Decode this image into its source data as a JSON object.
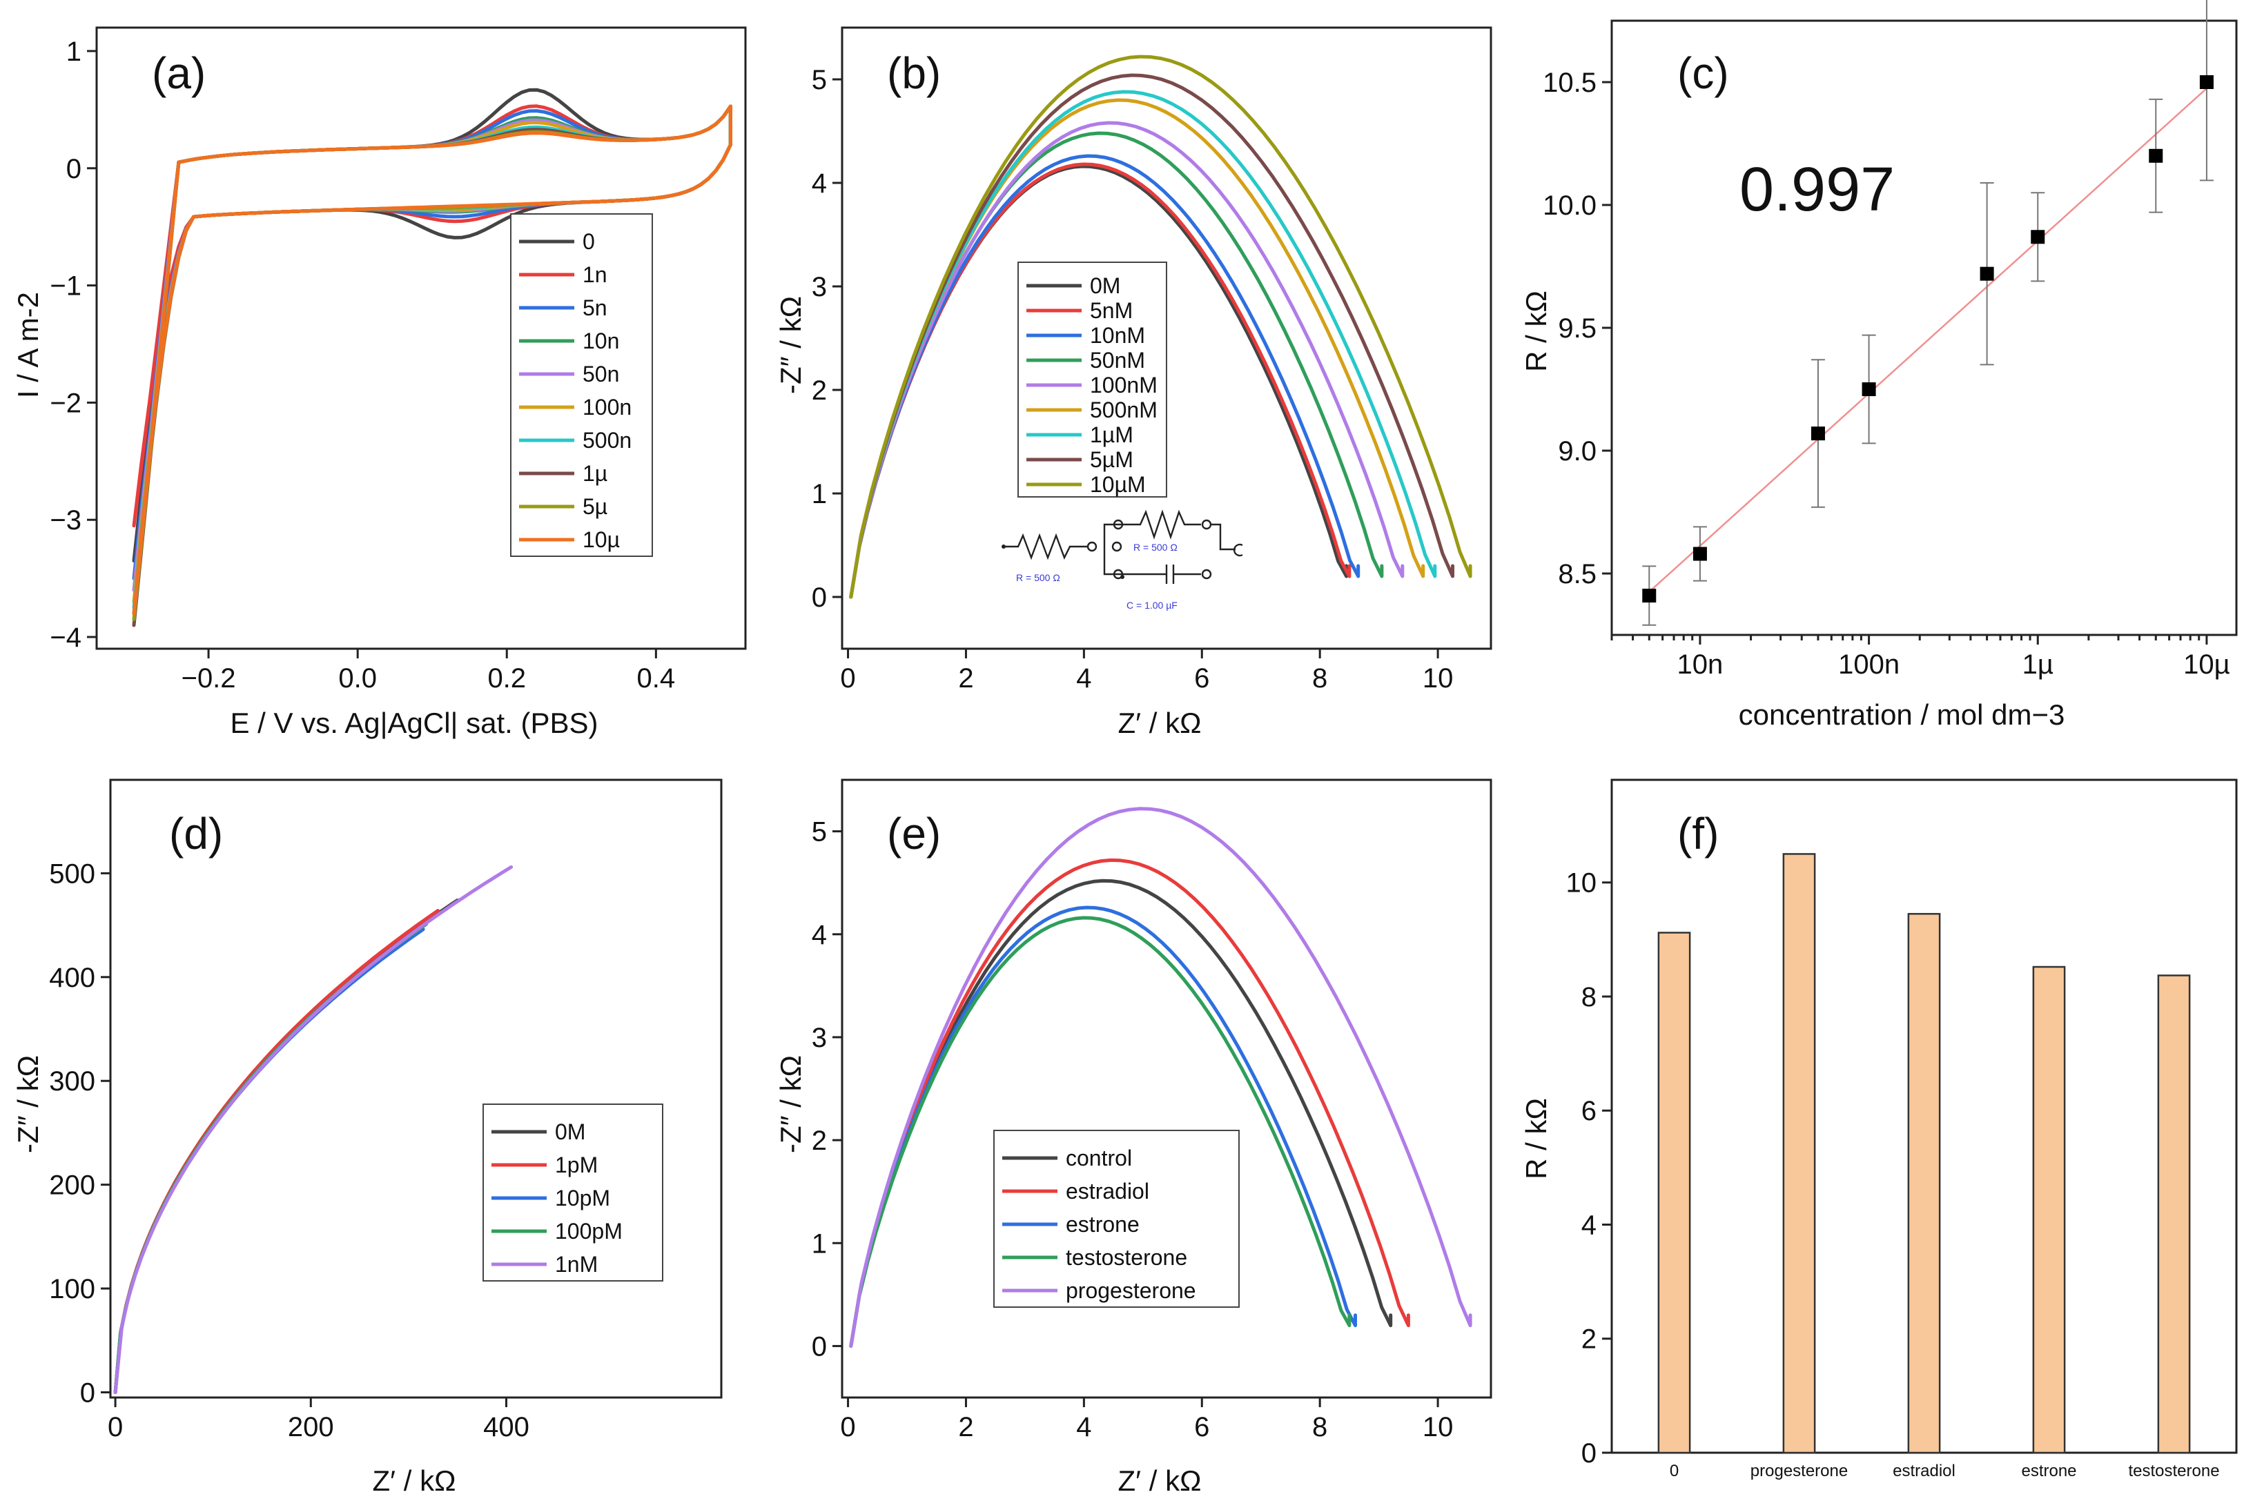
{
  "colors": {
    "c0": "#444444",
    "c1": "#e83c3c",
    "c2": "#2e6fe0",
    "c3": "#2f9e5a",
    "c4": "#b07ce8",
    "c5": "#d4a017",
    "c6": "#27c8c8",
    "c7": "#7a4a4a",
    "c8": "#9a9a14",
    "c9": "#f07020",
    "bar": "#f8c89a",
    "fit": "#f09090"
  },
  "chart_data": [
    {
      "panel": "(a)",
      "type": "line",
      "xlabel": "E / V vs. Ag|AgCl| sat. (PBS)",
      "ylabel": "I / A m-2",
      "xlim": [
        -0.35,
        0.52
      ],
      "ylim": [
        -4.1,
        1.2
      ],
      "xticks": [
        -0.2,
        0.0,
        0.2,
        0.4
      ],
      "yticks": [
        -4,
        -3,
        -2,
        -1,
        0,
        1
      ],
      "xtick_labels": [
        "−0.2",
        "0.0",
        "0.2",
        "0.4"
      ],
      "ytick_labels": [
        "−4",
        "−3",
        "−2",
        "−1",
        "0",
        "1"
      ],
      "legend": [
        "0",
        "1n",
        "5n",
        "10n",
        "50n",
        "100n",
        "500n",
        "1µ",
        "5µ",
        "10µ"
      ],
      "peak_anodic": [
        0.84,
        0.7,
        0.66,
        0.6,
        0.58,
        0.56,
        0.52,
        0.5,
        0.48,
        0.47
      ],
      "peak_cathodic": [
        -0.58,
        -0.44,
        -0.4,
        -0.36,
        -0.35,
        -0.34,
        -0.33,
        -0.32,
        -0.32,
        -0.31
      ],
      "end_current": [
        -3.35,
        -3.05,
        -3.5,
        -3.8,
        -3.6,
        -3.7,
        -3.75,
        -3.9,
        -3.85,
        -3.8
      ]
    },
    {
      "panel": "(b)",
      "type": "line",
      "xlabel": "Z′ / kΩ",
      "ylabel": "-Z″ / kΩ",
      "xlim": [
        -0.1,
        10.9
      ],
      "ylim": [
        -0.5,
        5.5
      ],
      "xticks": [
        0,
        2,
        4,
        6,
        8,
        10
      ],
      "yticks": [
        0,
        1,
        2,
        3,
        4,
        5
      ],
      "xtick_labels": [
        "0",
        "2",
        "4",
        "6",
        "8",
        "10"
      ],
      "ytick_labels": [
        "0",
        "1",
        "2",
        "3",
        "4",
        "5"
      ],
      "legend": [
        "0M",
        "5nM",
        "10nM",
        "50nM",
        "100nM",
        "500nM",
        "1µM",
        "5µM",
        "10µM"
      ],
      "diameter": [
        8.45,
        8.5,
        8.65,
        9.05,
        9.4,
        9.75,
        9.95,
        10.25,
        10.55
      ],
      "peak": [
        4.16,
        4.18,
        4.26,
        4.48,
        4.58,
        4.8,
        4.88,
        5.04,
        5.22
      ],
      "circuit": {
        "r1": "R = 500 Ω",
        "r2": "R = 500 Ω",
        "c": "C = 1.00 µF"
      }
    },
    {
      "panel": "(c)",
      "type": "scatter",
      "xlabel": "concentration / mol dm−3",
      "ylabel": "R / kΩ",
      "xscale": "log",
      "xlim": [
        3e-09,
        1.5e-05
      ],
      "ylim": [
        8.25,
        10.75
      ],
      "xticks": [
        1e-08,
        1e-07,
        1e-06,
        1e-05
      ],
      "xtick_labels": [
        "10n",
        "100n",
        "1µ",
        "10µ"
      ],
      "yticks": [
        8.5,
        9.0,
        9.5,
        10.0,
        10.5
      ],
      "ytick_labels": [
        "8.5",
        "9.0",
        "9.5",
        "10.0",
        "10.5"
      ],
      "x": [
        5e-09,
        1e-08,
        5e-08,
        1e-07,
        5e-07,
        1e-06,
        5e-06,
        1e-05
      ],
      "y": [
        8.41,
        8.58,
        9.07,
        9.25,
        9.72,
        9.87,
        10.2,
        10.5
      ],
      "err": [
        0.12,
        0.11,
        0.3,
        0.22,
        0.37,
        0.18,
        0.23,
        0.4
      ],
      "annotation": "0.997"
    },
    {
      "panel": "(d)",
      "type": "line",
      "xlabel": "Z′ / kΩ",
      "ylabel": "-Z″ / kΩ",
      "xlim": [
        -5,
        620
      ],
      "ylim": [
        -5,
        590
      ],
      "xticks": [
        0,
        200,
        400
      ],
      "yticks": [
        0,
        100,
        200,
        300,
        400,
        500
      ],
      "xtick_labels": [
        "0",
        "200",
        "400"
      ],
      "ytick_labels": [
        "0",
        "100",
        "200",
        "300",
        "400",
        "500"
      ],
      "legend": [
        "0M",
        "1pM",
        "10pM",
        "100pM",
        "1nM"
      ],
      "end_x": [
        350,
        330,
        315,
        318,
        405
      ],
      "end_y": [
        474,
        464,
        446,
        451,
        506
      ]
    },
    {
      "panel": "(e)",
      "type": "line",
      "xlabel": "Z′ / kΩ",
      "ylabel": "-Z″ / kΩ",
      "xlim": [
        -0.1,
        10.9
      ],
      "ylim": [
        -0.5,
        5.5
      ],
      "xticks": [
        0,
        2,
        4,
        6,
        8,
        10
      ],
      "yticks": [
        0,
        1,
        2,
        3,
        4,
        5
      ],
      "xtick_labels": [
        "0",
        "2",
        "4",
        "6",
        "8",
        "10"
      ],
      "ytick_labels": [
        "0",
        "1",
        "2",
        "3",
        "4",
        "5"
      ],
      "legend": [
        "control",
        "estradiol",
        "estrone",
        "testosterone",
        "progesterone"
      ],
      "diameter": [
        9.2,
        9.5,
        8.6,
        8.5,
        10.55
      ],
      "peak": [
        4.52,
        4.72,
        4.26,
        4.16,
        5.22
      ]
    },
    {
      "panel": "(f)",
      "type": "bar",
      "ylabel": "R / kΩ",
      "ylim": [
        0,
        11.8
      ],
      "yticks": [
        0,
        2,
        4,
        6,
        8,
        10
      ],
      "ytick_labels": [
        "0",
        "2",
        "4",
        "6",
        "8",
        "10"
      ],
      "categories": [
        "0",
        "progesterone",
        "estradiol",
        "estrone",
        "testosterone"
      ],
      "values": [
        9.12,
        10.5,
        9.45,
        8.52,
        8.37
      ]
    }
  ]
}
